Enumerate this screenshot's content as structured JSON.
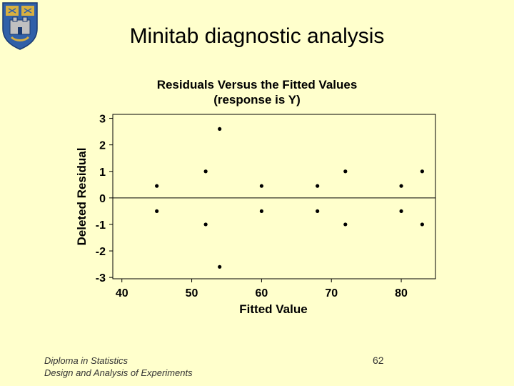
{
  "slide": {
    "title": "Minitab diagnostic analysis",
    "footer_line1": "Diploma in Statistics",
    "footer_line2": "Design and Analysis of Experiments",
    "page_number": "62"
  },
  "colors": {
    "background": "#ffffcc",
    "crest_blue": "#3060a8",
    "crest_gold": "#d8b040"
  },
  "chart_data": {
    "type": "scatter",
    "title": "Residuals Versus the Fitted Values",
    "subtitle": "(response is Y)",
    "xlabel": "Fitted Value",
    "ylabel": "Deleted Residual",
    "xlim": [
      38.7,
      84.9
    ],
    "ylim": [
      -3.05,
      3.15
    ],
    "xticks": [
      40,
      50,
      60,
      70,
      80
    ],
    "yticks": [
      -3,
      -2,
      -1,
      0,
      1,
      2,
      3
    ],
    "reference_line_y": 0,
    "grid": false,
    "points": [
      {
        "x": 45,
        "y": 0.45
      },
      {
        "x": 45,
        "y": -0.5
      },
      {
        "x": 52,
        "y": 1.0
      },
      {
        "x": 52,
        "y": -1.0
      },
      {
        "x": 54,
        "y": 2.6
      },
      {
        "x": 54,
        "y": -2.6
      },
      {
        "x": 60,
        "y": 0.45
      },
      {
        "x": 60,
        "y": -0.5
      },
      {
        "x": 68,
        "y": 0.45
      },
      {
        "x": 68,
        "y": -0.5
      },
      {
        "x": 72,
        "y": 1.0
      },
      {
        "x": 72,
        "y": -1.0
      },
      {
        "x": 80,
        "y": 0.45
      },
      {
        "x": 80,
        "y": -0.5
      },
      {
        "x": 83,
        "y": 1.0
      },
      {
        "x": 83,
        "y": -1.0
      }
    ]
  }
}
